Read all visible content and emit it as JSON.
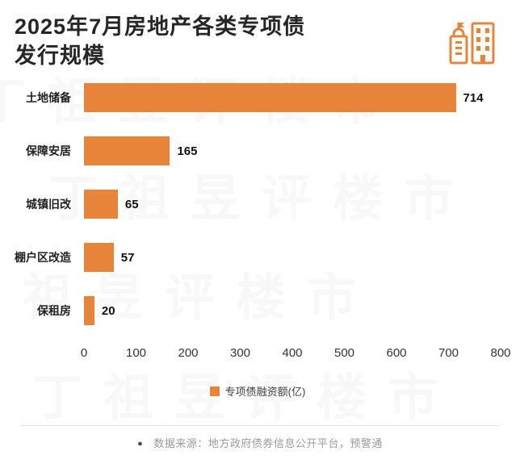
{
  "header": {
    "title_line1": "2025年7月房地产各类专项债",
    "title_line2": "发行规模"
  },
  "chart_data": {
    "type": "bar",
    "orientation": "horizontal",
    "title": "2025年7月房地产各类专项债发行规模",
    "categories": [
      "土地储备",
      "保障安居",
      "城镇旧改",
      "棚户区改造",
      "保租房"
    ],
    "values": [
      714,
      165,
      65,
      57,
      20
    ],
    "xlim": [
      0,
      800
    ],
    "x_ticks": [
      0,
      100,
      200,
      300,
      400,
      500,
      600,
      700,
      800
    ],
    "legend": "专项债融资额(亿)",
    "legend_position": "bottom",
    "grid": false,
    "bar_color": "#E8833A",
    "xlabel": "",
    "ylabel": ""
  },
  "footer": {
    "bullet": "●",
    "source": "数据来源：地方政府债券信息公开平台，预警通"
  },
  "watermark": "丁祖昱评楼市",
  "colors": {
    "accent_orange": "#E8833A",
    "title_text": "#262626",
    "source_text": "#9B9B9B"
  },
  "icons": {
    "building_icon": "building-icon",
    "legend_swatch": "orange-square"
  }
}
